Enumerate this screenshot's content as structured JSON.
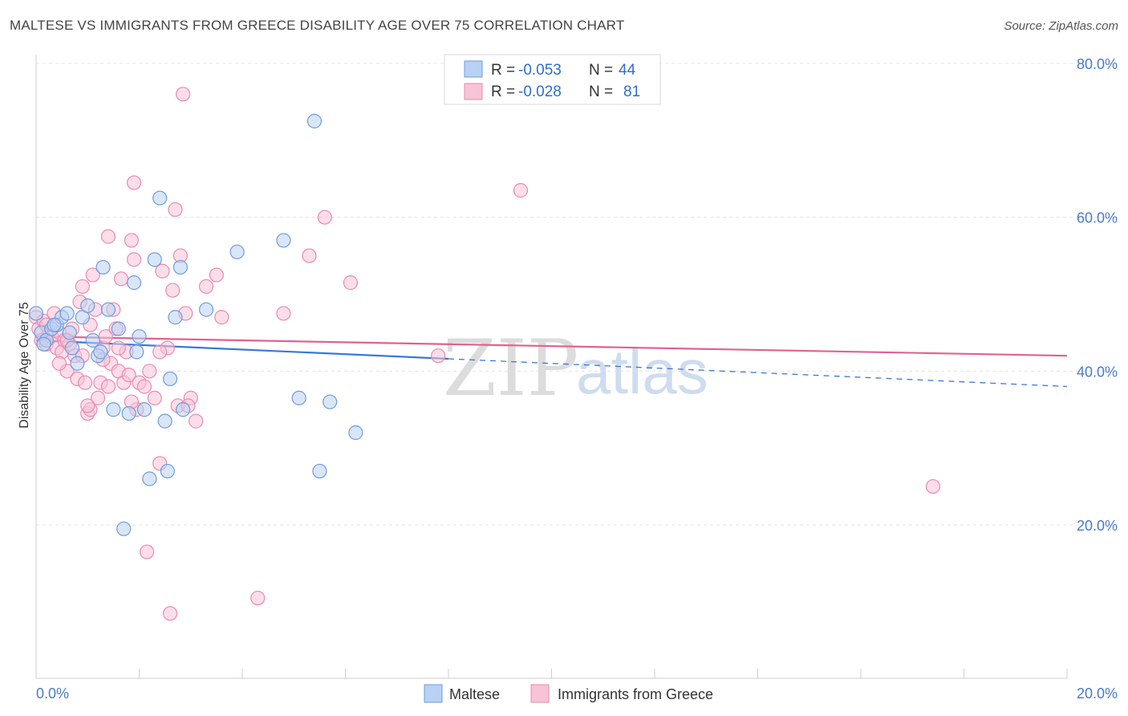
{
  "title": "MALTESE VS IMMIGRANTS FROM GREECE DISABILITY AGE OVER 75 CORRELATION CHART",
  "source": "Source: ZipAtlas.com",
  "watermark": {
    "zip": "ZIP",
    "atlas": "atlas"
  },
  "legend": {
    "r_label": "R =",
    "n_label": "N =",
    "rows": [
      {
        "r": "-0.053",
        "n": "44"
      },
      {
        "r": "-0.028",
        "n": "81"
      }
    ]
  },
  "chart_data": {
    "type": "scatter",
    "title": "MALTESE VS IMMIGRANTS FROM GREECE DISABILITY AGE OVER 75 CORRELATION CHART",
    "xlabel": "",
    "ylabel": "Disability Age Over 75",
    "xlim": [
      0,
      20
    ],
    "ylim": [
      0,
      82
    ],
    "x_tick_labels": [
      "0.0%",
      "20.0%"
    ],
    "y_ticks": [
      20,
      40,
      60,
      80
    ],
    "y_tick_labels": [
      "20.0%",
      "40.0%",
      "60.0%",
      "80.0%"
    ],
    "legend_position": "top-center",
    "colors": {
      "maltese_fill": "#b9d1f3",
      "maltese_stroke": "#6e9be0",
      "maltese_line": "#3a78d6",
      "greece_fill": "#f7c3d5",
      "greece_stroke": "#e98ab0",
      "greece_line": "#e0628f"
    },
    "series": [
      {
        "name": "Maltese",
        "r": -0.053,
        "n": 44,
        "trend": {
          "x0": 0,
          "y0": 44.0,
          "x_solid_end": 8.0,
          "x1": 20,
          "y1": 38.0
        },
        "points": [
          [
            0.0,
            47.5
          ],
          [
            0.1,
            45.0
          ],
          [
            0.2,
            44.0
          ],
          [
            0.3,
            45.5
          ],
          [
            0.4,
            46.0
          ],
          [
            0.5,
            47.0
          ],
          [
            0.6,
            47.5
          ],
          [
            0.7,
            43.0
          ],
          [
            0.8,
            41.0
          ],
          [
            0.9,
            47.0
          ],
          [
            1.0,
            48.5
          ],
          [
            1.1,
            44.0
          ],
          [
            1.2,
            42.0
          ],
          [
            1.3,
            53.5
          ],
          [
            1.4,
            48.0
          ],
          [
            1.5,
            35.0
          ],
          [
            1.6,
            45.5
          ],
          [
            1.7,
            19.5
          ],
          [
            1.8,
            34.5
          ],
          [
            1.9,
            51.5
          ],
          [
            2.0,
            44.5
          ],
          [
            2.1,
            35.0
          ],
          [
            2.3,
            54.5
          ],
          [
            2.4,
            62.5
          ],
          [
            2.5,
            33.5
          ],
          [
            2.6,
            39.0
          ],
          [
            2.7,
            47.0
          ],
          [
            2.8,
            53.5
          ],
          [
            3.3,
            48.0
          ],
          [
            3.9,
            55.5
          ],
          [
            4.8,
            57.0
          ],
          [
            5.1,
            36.5
          ],
          [
            5.5,
            27.0
          ],
          [
            5.7,
            36.0
          ],
          [
            6.2,
            32.0
          ],
          [
            5.4,
            72.5
          ],
          [
            2.2,
            26.0
          ],
          [
            2.55,
            27.0
          ],
          [
            2.85,
            35.0
          ],
          [
            1.25,
            42.5
          ],
          [
            1.95,
            42.5
          ],
          [
            0.35,
            46.0
          ],
          [
            0.15,
            43.5
          ],
          [
            0.65,
            45.0
          ]
        ]
      },
      {
        "name": "Immigrants from Greece",
        "r": -0.028,
        "n": 81,
        "trend": {
          "x0": 0,
          "y0": 44.5,
          "x1": 20,
          "y1": 42.0
        },
        "points": [
          [
            0.0,
            47.0
          ],
          [
            0.05,
            45.5
          ],
          [
            0.1,
            44.0
          ],
          [
            0.15,
            46.5
          ],
          [
            0.2,
            43.5
          ],
          [
            0.25,
            45.0
          ],
          [
            0.3,
            44.5
          ],
          [
            0.35,
            47.5
          ],
          [
            0.4,
            43.0
          ],
          [
            0.45,
            45.0
          ],
          [
            0.5,
            42.5
          ],
          [
            0.55,
            44.0
          ],
          [
            0.6,
            40.0
          ],
          [
            0.65,
            43.5
          ],
          [
            0.7,
            45.5
          ],
          [
            0.75,
            42.0
          ],
          [
            0.8,
            39.0
          ],
          [
            0.85,
            49.0
          ],
          [
            0.9,
            51.0
          ],
          [
            0.95,
            38.5
          ],
          [
            1.0,
            34.5
          ],
          [
            1.05,
            35.0
          ],
          [
            1.1,
            52.5
          ],
          [
            1.15,
            48.0
          ],
          [
            1.2,
            36.5
          ],
          [
            1.25,
            38.5
          ],
          [
            1.3,
            43.0
          ],
          [
            1.35,
            44.5
          ],
          [
            1.4,
            38.0
          ],
          [
            1.45,
            41.0
          ],
          [
            1.5,
            48.0
          ],
          [
            1.55,
            45.5
          ],
          [
            1.6,
            40.0
          ],
          [
            1.65,
            52.0
          ],
          [
            1.7,
            38.5
          ],
          [
            1.75,
            42.5
          ],
          [
            1.8,
            39.5
          ],
          [
            1.85,
            57.0
          ],
          [
            1.9,
            54.5
          ],
          [
            1.95,
            35.0
          ],
          [
            2.0,
            38.5
          ],
          [
            2.1,
            38.0
          ],
          [
            2.2,
            40.0
          ],
          [
            2.3,
            36.5
          ],
          [
            2.4,
            28.0
          ],
          [
            2.45,
            53.0
          ],
          [
            2.55,
            43.0
          ],
          [
            2.65,
            50.5
          ],
          [
            2.7,
            61.0
          ],
          [
            2.75,
            35.5
          ],
          [
            2.8,
            55.0
          ],
          [
            2.9,
            47.5
          ],
          [
            3.0,
            36.5
          ],
          [
            3.3,
            51.0
          ],
          [
            3.5,
            52.5
          ],
          [
            3.6,
            47.0
          ],
          [
            4.8,
            47.5
          ],
          [
            5.3,
            55.0
          ],
          [
            5.6,
            60.0
          ],
          [
            6.1,
            51.5
          ],
          [
            7.8,
            42.0
          ],
          [
            9.4,
            63.5
          ],
          [
            17.4,
            25.0
          ],
          [
            2.85,
            76.0
          ],
          [
            1.9,
            64.5
          ],
          [
            1.4,
            57.5
          ],
          [
            2.15,
            16.5
          ],
          [
            2.6,
            8.5
          ],
          [
            4.3,
            10.5
          ],
          [
            0.6,
            44.0
          ],
          [
            0.9,
            42.0
          ],
          [
            1.05,
            46.0
          ],
          [
            1.6,
            43.0
          ],
          [
            2.4,
            42.5
          ],
          [
            1.3,
            41.5
          ],
          [
            0.45,
            41.0
          ],
          [
            1.85,
            36.0
          ],
          [
            2.95,
            35.5
          ],
          [
            3.1,
            33.5
          ],
          [
            1.0,
            35.5
          ],
          [
            0.2,
            46.0
          ]
        ]
      }
    ]
  },
  "bottom_legend": {
    "items": [
      "Maltese",
      "Immigrants from Greece"
    ]
  }
}
